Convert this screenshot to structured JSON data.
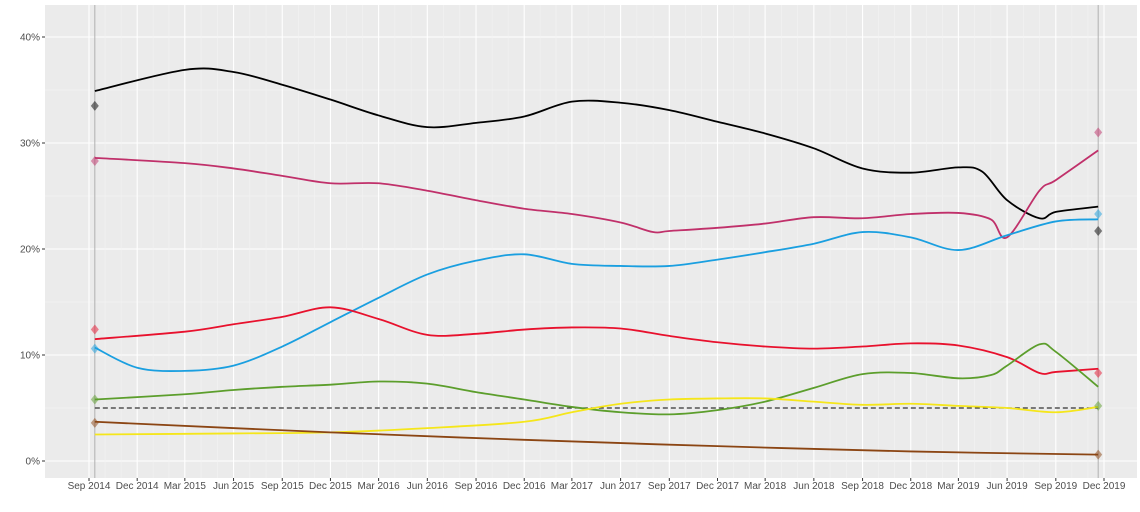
{
  "chart_data": {
    "type": "line",
    "title": "",
    "xlabel": "",
    "ylabel": "",
    "xlim": [
      "2014-08-01",
      "2020-01-01"
    ],
    "ylim": [
      0,
      42
    ],
    "grid": true,
    "legend": "none",
    "x_ticks": [
      "Sep 2014",
      "Dec 2014",
      "Mar 2015",
      "Jun 2015",
      "Sep 2015",
      "Dec 2015",
      "Mar 2016",
      "Jun 2016",
      "Sep 2016",
      "Dec 2016",
      "Mar 2017",
      "Jun 2017",
      "Sep 2017",
      "Dec 2017",
      "Mar 2018",
      "Jun 2018",
      "Sep 2018",
      "Dec 2018",
      "Mar 2019",
      "Jun 2019",
      "Sep 2019",
      "Dec 2019"
    ],
    "x_tick_dates": [
      "2014-09-01",
      "2014-12-01",
      "2015-03-01",
      "2015-06-01",
      "2015-09-01",
      "2015-12-01",
      "2016-03-01",
      "2016-06-01",
      "2016-09-01",
      "2016-12-01",
      "2017-03-01",
      "2017-06-01",
      "2017-09-01",
      "2017-12-01",
      "2018-03-01",
      "2018-06-01",
      "2018-09-01",
      "2018-12-01",
      "2019-03-01",
      "2019-06-01",
      "2019-09-01",
      "2019-12-01"
    ],
    "y_ticks": [
      0,
      10,
      20,
      30,
      40
    ],
    "y_tick_labels": [
      "0%",
      "10%",
      "20%",
      "30%",
      "40%"
    ],
    "threshold": 5,
    "event_dates": [
      "2014-09-12",
      "2019-11-20"
    ],
    "series": [
      {
        "color": "#000000",
        "dates": [
          "2014-09-12",
          "2015-03-01",
          "2015-06-01",
          "2015-09-01",
          "2015-12-01",
          "2016-03-01",
          "2016-06-01",
          "2016-09-01",
          "2016-12-01",
          "2017-03-01",
          "2017-06-01",
          "2017-09-01",
          "2017-12-01",
          "2018-03-01",
          "2018-06-01",
          "2018-09-01",
          "2018-12-01",
          "2019-03-01",
          "2019-04-15",
          "2019-06-01",
          "2019-08-01",
          "2019-09-01",
          "2019-11-20"
        ],
        "values": [
          34.9,
          36.9,
          36.7,
          35.5,
          34.1,
          32.6,
          31.5,
          31.9,
          32.5,
          33.9,
          33.8,
          33.1,
          32.0,
          30.9,
          29.5,
          27.6,
          27.2,
          27.7,
          27.3,
          24.6,
          22.9,
          23.5,
          24.0
        ],
        "start_marker": 33.5,
        "end_marker": 21.7
      },
      {
        "color": "#c0306a",
        "dates": [
          "2014-09-12",
          "2015-03-01",
          "2015-06-01",
          "2015-09-01",
          "2015-12-01",
          "2016-03-01",
          "2016-06-01",
          "2016-09-01",
          "2016-12-01",
          "2017-03-01",
          "2017-06-01",
          "2017-08-01",
          "2017-09-01",
          "2017-12-01",
          "2018-03-01",
          "2018-06-01",
          "2018-09-01",
          "2018-12-01",
          "2019-03-01",
          "2019-05-01",
          "2019-06-01",
          "2019-08-01",
          "2019-09-01",
          "2019-11-20"
        ],
        "values": [
          28.6,
          28.1,
          27.6,
          26.9,
          26.2,
          26.2,
          25.5,
          24.6,
          23.8,
          23.3,
          22.5,
          21.6,
          21.7,
          22.0,
          22.4,
          23.0,
          22.9,
          23.3,
          23.4,
          22.8,
          21.1,
          25.5,
          26.5,
          29.3
        ],
        "start_marker": 28.3,
        "end_marker": 31.0
      },
      {
        "color": "#1a9fe0",
        "dates": [
          "2014-09-12",
          "2014-12-01",
          "2015-03-01",
          "2015-06-01",
          "2015-09-01",
          "2015-12-01",
          "2016-03-01",
          "2016-06-01",
          "2016-09-01",
          "2016-12-01",
          "2017-03-01",
          "2017-06-01",
          "2017-09-01",
          "2017-12-01",
          "2018-03-01",
          "2018-06-01",
          "2018-09-01",
          "2018-12-01",
          "2019-03-01",
          "2019-06-01",
          "2019-09-01",
          "2019-11-20"
        ],
        "values": [
          10.7,
          8.8,
          8.5,
          9.0,
          10.8,
          13.1,
          15.4,
          17.6,
          18.9,
          19.5,
          18.6,
          18.4,
          18.4,
          19.0,
          19.7,
          20.5,
          21.6,
          21.1,
          19.9,
          21.3,
          22.6,
          22.8
        ],
        "start_marker": 10.6,
        "end_marker": 23.3
      },
      {
        "color": "#e8112d",
        "dates": [
          "2014-09-12",
          "2015-03-01",
          "2015-06-01",
          "2015-09-01",
          "2015-12-01",
          "2016-03-01",
          "2016-06-01",
          "2016-09-01",
          "2016-12-01",
          "2017-03-01",
          "2017-06-01",
          "2017-09-01",
          "2017-12-01",
          "2018-03-01",
          "2018-06-01",
          "2018-09-01",
          "2018-12-01",
          "2019-03-01",
          "2019-06-01",
          "2019-08-01",
          "2019-09-01",
          "2019-11-20"
        ],
        "values": [
          11.5,
          12.2,
          12.9,
          13.6,
          14.5,
          13.4,
          11.9,
          12.0,
          12.4,
          12.6,
          12.5,
          11.8,
          11.2,
          10.8,
          10.6,
          10.8,
          11.1,
          10.9,
          9.8,
          8.3,
          8.4,
          8.7
        ],
        "start_marker": 12.4,
        "end_marker": 8.3
      },
      {
        "color": "#5c9e2c",
        "dates": [
          "2014-09-12",
          "2015-03-01",
          "2015-06-01",
          "2015-09-01",
          "2015-12-01",
          "2016-03-01",
          "2016-06-01",
          "2016-09-01",
          "2016-12-01",
          "2017-03-01",
          "2017-06-01",
          "2017-09-01",
          "2017-12-01",
          "2018-03-01",
          "2018-06-01",
          "2018-09-01",
          "2018-12-01",
          "2019-03-01",
          "2019-05-01",
          "2019-06-01",
          "2019-08-01",
          "2019-09-01",
          "2019-11-20"
        ],
        "values": [
          5.8,
          6.3,
          6.7,
          7.0,
          7.2,
          7.5,
          7.3,
          6.5,
          5.8,
          5.1,
          4.6,
          4.4,
          4.8,
          5.6,
          6.9,
          8.2,
          8.3,
          7.8,
          8.1,
          9.0,
          11.0,
          10.3,
          7.0
        ],
        "start_marker": 5.8,
        "end_marker": 5.2
      },
      {
        "color": "#f5e61a",
        "dates": [
          "2014-09-12",
          "2015-06-01",
          "2015-12-01",
          "2016-06-01",
          "2016-12-01",
          "2017-03-01",
          "2017-06-01",
          "2017-09-01",
          "2017-12-01",
          "2018-03-01",
          "2018-06-01",
          "2018-09-01",
          "2018-12-01",
          "2019-03-01",
          "2019-06-01",
          "2019-09-01",
          "2019-11-20"
        ],
        "values": [
          2.5,
          2.6,
          2.7,
          3.1,
          3.7,
          4.6,
          5.4,
          5.8,
          5.9,
          5.9,
          5.6,
          5.3,
          5.4,
          5.2,
          5.0,
          4.6,
          5.1
        ]
      },
      {
        "color": "#8b4513",
        "dates": [
          "2014-09-12",
          "2015-12-01",
          "2016-12-01",
          "2017-12-01",
          "2018-12-01",
          "2019-11-20"
        ],
        "values": [
          3.7,
          2.7,
          2.0,
          1.4,
          0.9,
          0.6
        ],
        "start_marker": 3.6,
        "end_marker": 0.6
      }
    ]
  }
}
